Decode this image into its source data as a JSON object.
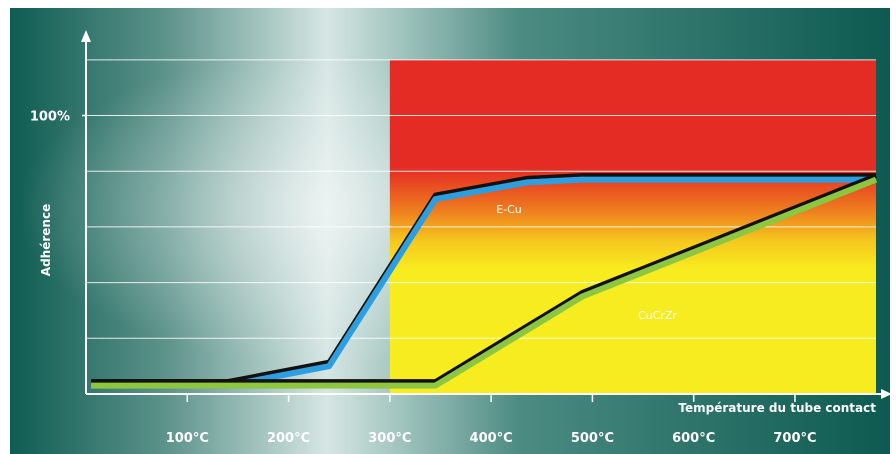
{
  "chart_data": {
    "type": "line",
    "title": "",
    "xlabel": "Température du tube contact",
    "ylabel": "Adhérence",
    "x_unit": "°C",
    "xlim": [
      0,
      780
    ],
    "ylim": [
      0,
      130
    ],
    "x_ticks": [
      "100°C",
      "200°C",
      "300°C",
      "400°C",
      "500°C",
      "600°C",
      "700°C"
    ],
    "x_tick_values": [
      100,
      200,
      300,
      400,
      500,
      600,
      700
    ],
    "y_ticks": [
      "100%"
    ],
    "y_tick_values": [
      100
    ],
    "grid": true,
    "regions": [
      {
        "x_from": 300,
        "x_to": 780,
        "y_from": 81,
        "y_to": 120,
        "color": "#e42b24"
      },
      {
        "x_from": 300,
        "x_to": 780,
        "y_from": 0,
        "y_to": 81,
        "color": "#f7ec1f",
        "gradient_top": "#e42b24"
      }
    ],
    "series": [
      {
        "name": "E-Cu",
        "color": "#2d9fe0",
        "x": [
          5,
          140,
          240,
          345,
          435,
          490,
          780
        ],
        "y": [
          3,
          3,
          10,
          70,
          76,
          77,
          77
        ]
      },
      {
        "name": "CuCrZr",
        "color": "#8dc63f",
        "x": [
          5,
          345,
          490,
          780
        ],
        "y": [
          3,
          3,
          35,
          77
        ]
      }
    ]
  }
}
